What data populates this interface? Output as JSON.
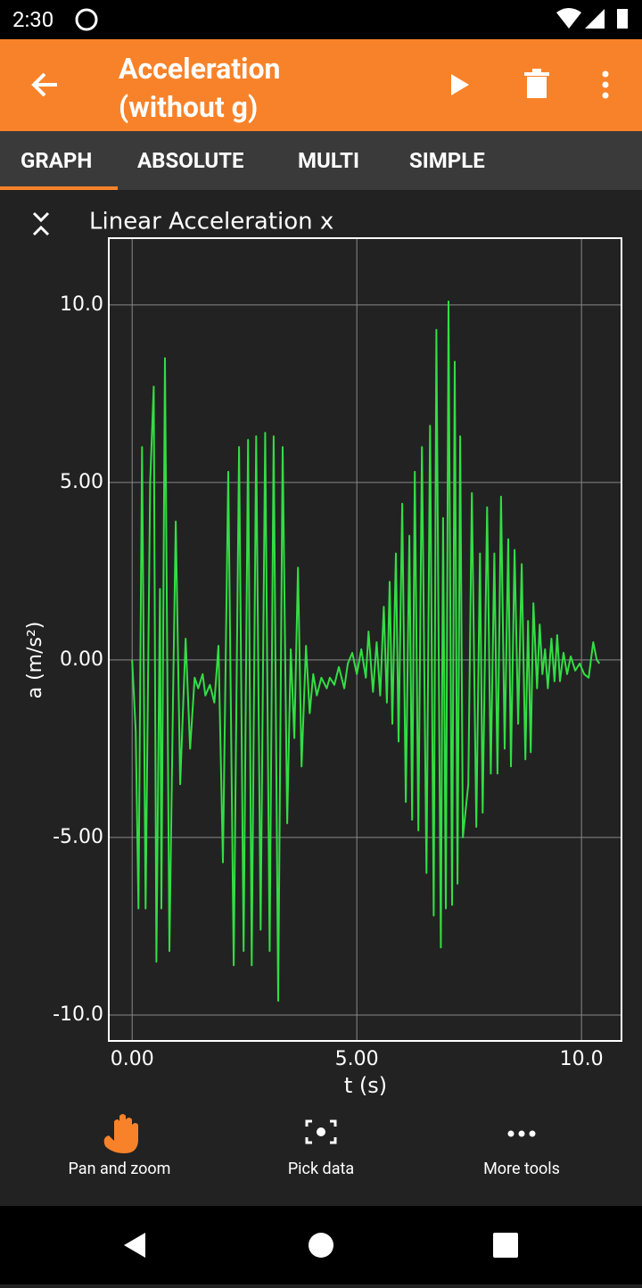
{
  "status": {
    "time": "2:30"
  },
  "app_bar": {
    "title": "Acceleration (without g)"
  },
  "tabs": [
    "GRAPH",
    "ABSOLUTE",
    "MULTI",
    "SIMPLE"
  ],
  "chart_data": {
    "type": "line",
    "title": "Linear Acceleration x",
    "xlabel": "t (s)",
    "ylabel": "a (m/s²)",
    "color": "#33dd44",
    "grid": true,
    "xlim": [
      -0.52,
      10.89
    ],
    "ylim": [
      -10.73,
      11.88
    ],
    "xticks": [
      {
        "value": 0,
        "label": "0.00"
      },
      {
        "value": 5,
        "label": "5.00"
      },
      {
        "value": 10,
        "label": "10.0"
      }
    ],
    "yticks": [
      {
        "value": -10,
        "label": "-10.0"
      },
      {
        "value": -5,
        "label": "-5.00"
      },
      {
        "value": 0,
        "label": "0.00"
      },
      {
        "value": 5,
        "label": "5.00"
      },
      {
        "value": 10,
        "label": "10.0"
      }
    ],
    "x": [
      0,
      0.08,
      0.14,
      0.22,
      0.3,
      0.4,
      0.48,
      0.54,
      0.62,
      0.65,
      0.73,
      0.83,
      0.91,
      0.97,
      1.07,
      1.19,
      1.29,
      1.39,
      1.47,
      1.57,
      1.63,
      1.73,
      1.83,
      1.92,
      2.02,
      2.14,
      2.26,
      2.38,
      2.48,
      2.58,
      2.66,
      2.76,
      2.86,
      2.96,
      3.06,
      3.15,
      3.25,
      3.35,
      3.45,
      3.53,
      3.61,
      3.69,
      3.77,
      3.87,
      3.95,
      4.03,
      4.11,
      4.21,
      4.33,
      4.4,
      4.5,
      4.6,
      4.72,
      4.8,
      4.9,
      5,
      5.1,
      5.2,
      5.26,
      5.36,
      5.44,
      5.52,
      5.6,
      5.67,
      5.73,
      5.79,
      5.87,
      5.93,
      6.01,
      6.09,
      6.17,
      6.23,
      6.29,
      6.37,
      6.45,
      6.55,
      6.63,
      6.71,
      6.77,
      6.87,
      6.92,
      6.98,
      7.04,
      7.12,
      7.18,
      7.24,
      7.3,
      7.36,
      7.48,
      7.56,
      7.66,
      7.74,
      7.8,
      7.9,
      7.98,
      8.06,
      8.13,
      8.21,
      8.29,
      8.37,
      8.43,
      8.51,
      8.59,
      8.67,
      8.75,
      8.81,
      8.87,
      8.93,
      9.01,
      9.07,
      9.13,
      9.19,
      9.25,
      9.33,
      9.4,
      9.46,
      9.52,
      9.6,
      9.68,
      9.76,
      9.86,
      9.96,
      10.06,
      10.16,
      10.26,
      10.34,
      10.4
    ],
    "values": [
      0,
      -2,
      -7,
      6,
      -7,
      5,
      7.7,
      -8.5,
      2,
      -7,
      8.5,
      -8.2,
      -1,
      3.9,
      -3.5,
      0.6,
      -2.5,
      -0.5,
      -0.8,
      -0.4,
      -1,
      -0.7,
      -1.2,
      0.4,
      -5.7,
      5.3,
      -8.6,
      6,
      -8.2,
      6.2,
      -8.6,
      6.3,
      -7.6,
      6.4,
      -8.2,
      6.3,
      -9.6,
      6,
      -4.6,
      0.3,
      -2.2,
      2.6,
      -3,
      0.4,
      -1.5,
      -0.4,
      -1,
      -0.5,
      -0.8,
      -0.5,
      -0.7,
      -0.2,
      -0.8,
      -0.1,
      0.2,
      -0.4,
      0.3,
      -0.5,
      0.8,
      -0.9,
      0.5,
      -1,
      1.5,
      -1.2,
      2.2,
      -1.8,
      3,
      -2.3,
      4.4,
      -4,
      3.5,
      -4.5,
      5.3,
      -4.8,
      6,
      -6,
      6.6,
      -7.2,
      9.3,
      -8.1,
      4,
      -7,
      10.1,
      -6.9,
      8.4,
      -6.3,
      6.3,
      -5,
      -3.5,
      4.7,
      -4.7,
      3,
      -4.3,
      4.3,
      -3.2,
      3,
      -3.2,
      4.6,
      -2.5,
      3.4,
      -3,
      3.1,
      -1.8,
      2.7,
      -2.8,
      1.1,
      -2.6,
      1.6,
      -0.8,
      1,
      -0.4,
      0.3,
      -0.8,
      0.6,
      -0.6,
      0.7,
      -0.6,
      0.2,
      -0.4,
      0.1,
      -0.3,
      -0.1,
      -0.4,
      -0.5,
      0.5,
      0,
      -0.1
    ]
  },
  "tools": [
    "Pan and zoom",
    "Pick data",
    "More tools"
  ]
}
